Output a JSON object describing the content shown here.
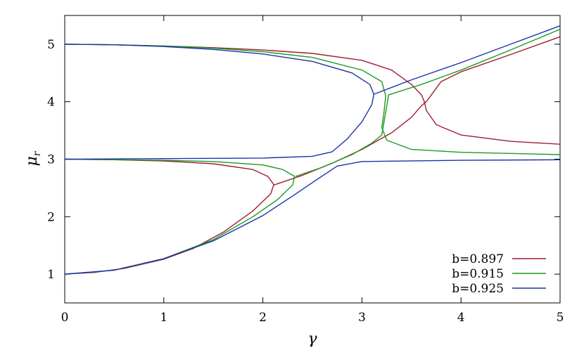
{
  "chart_data": {
    "type": "line",
    "xlabel": "γ",
    "ylabel": "μ",
    "ylabel_sub": "r",
    "xlim": [
      0,
      5
    ],
    "ylim": [
      0.5,
      5.5
    ],
    "xticks": [
      0,
      1,
      2,
      3,
      4,
      5
    ],
    "yticks": [
      1,
      2,
      3,
      4,
      5
    ],
    "xtick_labels": [
      "0",
      "1",
      "2",
      "3",
      "4",
      "5"
    ],
    "ytick_labels": [
      "1",
      "2",
      "3",
      "4",
      "5"
    ],
    "grid": false,
    "legend_position": "bottom-right",
    "series": [
      {
        "name": "b=0.897",
        "color": "#a01c32",
        "branches": [
          [
            [
              0.0,
              5.0
            ],
            [
              0.5,
              4.99
            ],
            [
              1.0,
              4.97
            ],
            [
              1.5,
              4.94
            ],
            [
              2.0,
              4.9
            ],
            [
              2.5,
              4.84
            ],
            [
              3.0,
              4.72
            ],
            [
              3.3,
              4.55
            ],
            [
              3.5,
              4.3
            ],
            [
              3.6,
              4.12
            ],
            [
              3.63,
              4.0
            ],
            [
              3.65,
              3.85
            ],
            [
              3.75,
              3.6
            ],
            [
              4.0,
              3.42
            ],
            [
              4.5,
              3.31
            ],
            [
              5.0,
              3.26
            ]
          ],
          [
            [
              0.0,
              3.0
            ],
            [
              0.5,
              2.99
            ],
            [
              1.0,
              2.97
            ],
            [
              1.5,
              2.92
            ],
            [
              1.9,
              2.82
            ],
            [
              2.05,
              2.7
            ],
            [
              2.11,
              2.56
            ],
            [
              2.08,
              2.4
            ],
            [
              1.9,
              2.1
            ],
            [
              1.6,
              1.73
            ],
            [
              1.3,
              1.45
            ],
            [
              1.0,
              1.26
            ],
            [
              0.6,
              1.1
            ],
            [
              0.3,
              1.03
            ],
            [
              0.0,
              1.0
            ]
          ],
          [
            [
              2.11,
              2.55
            ],
            [
              2.4,
              2.72
            ],
            [
              2.7,
              2.93
            ],
            [
              3.0,
              3.17
            ],
            [
              3.3,
              3.46
            ],
            [
              3.5,
              3.73
            ],
            [
              3.6,
              3.93
            ],
            [
              3.65,
              4.0
            ],
            [
              3.8,
              4.35
            ],
            [
              4.0,
              4.52
            ],
            [
              4.5,
              4.82
            ],
            [
              5.0,
              5.13
            ]
          ]
        ]
      },
      {
        "name": "b=0.915",
        "color": "#1a9c1f",
        "branches": [
          [
            [
              0.0,
              5.0
            ],
            [
              0.5,
              4.99
            ],
            [
              1.0,
              4.97
            ],
            [
              1.5,
              4.93
            ],
            [
              2.0,
              4.87
            ],
            [
              2.5,
              4.77
            ],
            [
              3.0,
              4.55
            ],
            [
              3.2,
              4.35
            ],
            [
              3.24,
              4.1
            ],
            [
              3.22,
              3.78
            ],
            [
              3.2,
              3.55
            ],
            [
              3.25,
              3.33
            ],
            [
              3.5,
              3.17
            ],
            [
              4.0,
              3.12
            ],
            [
              5.0,
              3.08
            ]
          ],
          [
            [
              0.0,
              3.0
            ],
            [
              0.5,
              2.99
            ],
            [
              1.0,
              2.98
            ],
            [
              1.5,
              2.96
            ],
            [
              2.0,
              2.9
            ],
            [
              2.2,
              2.82
            ],
            [
              2.32,
              2.7
            ],
            [
              2.3,
              2.55
            ],
            [
              2.15,
              2.3
            ],
            [
              1.9,
              2.0
            ],
            [
              1.5,
              1.6
            ],
            [
              1.0,
              1.27
            ],
            [
              0.5,
              1.07
            ],
            [
              0.0,
              1.0
            ]
          ],
          [
            [
              2.33,
              2.7
            ],
            [
              2.6,
              2.86
            ],
            [
              2.9,
              3.08
            ],
            [
              3.1,
              3.28
            ],
            [
              3.2,
              3.42
            ],
            [
              3.27,
              4.12
            ],
            [
              3.6,
              4.3
            ],
            [
              4.0,
              4.55
            ],
            [
              4.5,
              4.9
            ],
            [
              5.0,
              5.26
            ]
          ]
        ]
      },
      {
        "name": "b=0.925",
        "color": "#1c32a8",
        "branches": [
          [
            [
              0.0,
              5.0
            ],
            [
              0.5,
              4.99
            ],
            [
              1.0,
              4.96
            ],
            [
              1.5,
              4.91
            ],
            [
              2.0,
              4.83
            ],
            [
              2.5,
              4.7
            ],
            [
              2.9,
              4.5
            ],
            [
              3.08,
              4.3
            ],
            [
              3.12,
              4.13
            ],
            [
              3.1,
              3.95
            ],
            [
              3.0,
              3.65
            ],
            [
              2.85,
              3.35
            ],
            [
              2.7,
              3.13
            ],
            [
              2.5,
              3.05
            ],
            [
              2.0,
              3.02
            ],
            [
              1.0,
              3.01
            ],
            [
              0.0,
              3.0
            ]
          ],
          [
            [
              0.0,
              1.0
            ],
            [
              0.5,
              1.07
            ],
            [
              1.0,
              1.27
            ],
            [
              1.5,
              1.58
            ],
            [
              2.0,
              2.02
            ],
            [
              2.3,
              2.36
            ],
            [
              2.55,
              2.65
            ],
            [
              2.75,
              2.88
            ],
            [
              3.0,
              2.96
            ],
            [
              4.0,
              2.98
            ],
            [
              5.0,
              2.99
            ]
          ],
          [
            [
              3.12,
              4.13
            ],
            [
              3.5,
              4.38
            ],
            [
              4.0,
              4.68
            ],
            [
              4.5,
              5.0
            ],
            [
              5.0,
              5.32
            ]
          ]
        ]
      }
    ]
  }
}
